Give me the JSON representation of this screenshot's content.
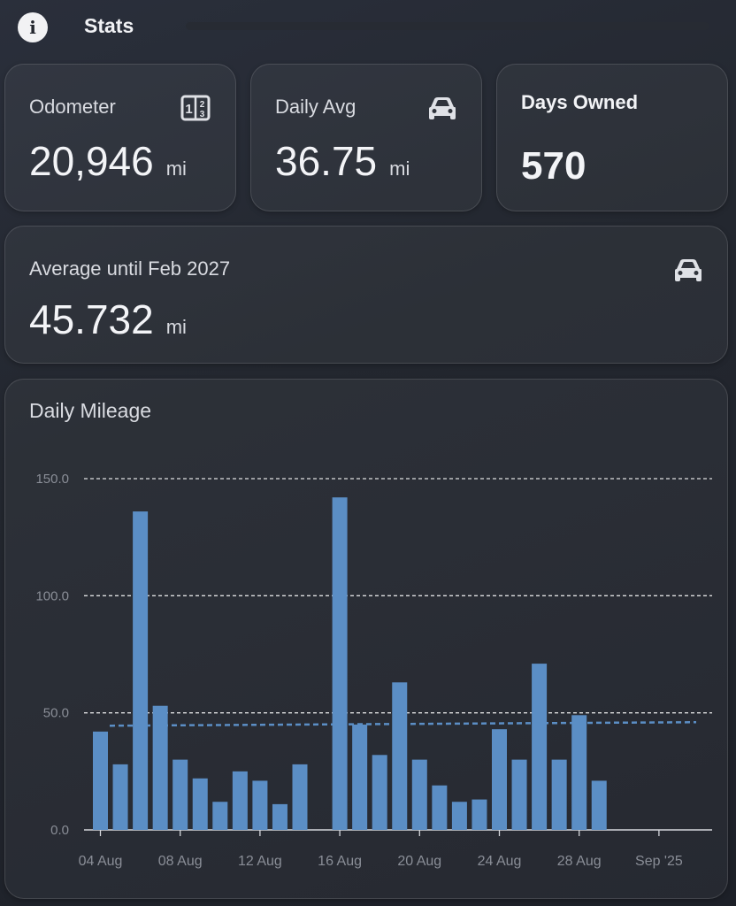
{
  "header": {
    "title": "Stats"
  },
  "cards": {
    "odometer": {
      "title": "Odometer",
      "value": "20,946",
      "unit": "mi"
    },
    "daily_avg": {
      "title": "Daily Avg",
      "value": "36.75",
      "unit": "mi"
    },
    "days_owned": {
      "title": "Days Owned",
      "value": "570"
    },
    "average_until": {
      "title": "Average until Feb 2027",
      "value": "45.732",
      "unit": "mi"
    }
  },
  "chart": {
    "title": "Daily Mileage"
  },
  "colors": {
    "bar": "#5b8ec5",
    "avg_line": "#5b8ec5",
    "grid": "#ffffff"
  },
  "icons": {
    "odometer": "odometer-icon",
    "car": "car-icon",
    "info": "info-icon"
  },
  "chart_data": {
    "type": "bar",
    "title": "Daily Mileage",
    "xlabel": "",
    "ylabel": "",
    "ylim": [
      0,
      150
    ],
    "yticks": [
      "0.0",
      "50.0",
      "100.0",
      "150.0"
    ],
    "xticks": [
      "04 Aug",
      "08 Aug",
      "12 Aug",
      "16 Aug",
      "20 Aug",
      "24 Aug",
      "28 Aug",
      "Sep '25"
    ],
    "categories": [
      "2025-08-04",
      "2025-08-05",
      "2025-08-06",
      "2025-08-07",
      "2025-08-08",
      "2025-08-09",
      "2025-08-10",
      "2025-08-11",
      "2025-08-12",
      "2025-08-13",
      "2025-08-14",
      "2025-08-15",
      "2025-08-16",
      "2025-08-17",
      "2025-08-18",
      "2025-08-19",
      "2025-08-20",
      "2025-08-21",
      "2025-08-22",
      "2025-08-23",
      "2025-08-24",
      "2025-08-25",
      "2025-08-26",
      "2025-08-27",
      "2025-08-28",
      "2025-08-29"
    ],
    "values": [
      42,
      28,
      136,
      53,
      30,
      22,
      12,
      25,
      21,
      11,
      28,
      0,
      142,
      45,
      32,
      63,
      30,
      19,
      12,
      13,
      43,
      30,
      71,
      30,
      49,
      21
    ],
    "average_line": {
      "start": 44.5,
      "end": 46.0
    },
    "grid": true,
    "legend": "none"
  }
}
